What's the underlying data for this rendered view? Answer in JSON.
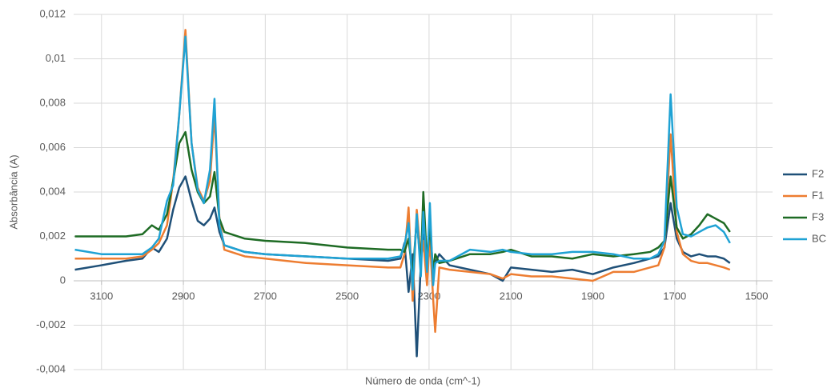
{
  "chart_data": {
    "type": "line",
    "x_label": "Número de onda (cm^-1)",
    "y_label": "Absorbância (A)",
    "x": [
      3165,
      3100,
      3040,
      3000,
      2977,
      2960,
      2940,
      2925,
      2910,
      2895,
      2880,
      2865,
      2850,
      2835,
      2824,
      2812,
      2800,
      2750,
      2700,
      2600,
      2500,
      2400,
      2370,
      2360,
      2350,
      2340,
      2330,
      2320,
      2314,
      2305,
      2298,
      2290,
      2285,
      2275,
      2250,
      2200,
      2150,
      2120,
      2100,
      2050,
      2000,
      1950,
      1900,
      1850,
      1800,
      1760,
      1740,
      1725,
      1710,
      1695,
      1680,
      1660,
      1640,
      1620,
      1600,
      1580,
      1565
    ],
    "series": [
      {
        "name": "F2",
        "color": "#1f5078",
        "values": [
          0.0005,
          0.0007,
          0.0009,
          0.001,
          0.0015,
          0.0013,
          0.0019,
          0.0032,
          0.0042,
          0.0047,
          0.0036,
          0.0027,
          0.0025,
          0.0028,
          0.0033,
          0.0022,
          0.0016,
          0.0013,
          0.0012,
          0.0011,
          0.001,
          0.0009,
          0.001,
          0.0017,
          -0.0005,
          0.0012,
          -0.0034,
          0.0008,
          0.0021,
          0.0005,
          0.0016,
          0.0002,
          0.0008,
          0.0012,
          0.0007,
          0.0005,
          0.0003,
          0.0,
          0.0006,
          0.0005,
          0.0004,
          0.0005,
          0.0003,
          0.0006,
          0.0008,
          0.001,
          0.0011,
          0.0015,
          0.0035,
          0.0019,
          0.0013,
          0.0011,
          0.0012,
          0.0011,
          0.0011,
          0.001,
          0.0008
        ]
      },
      {
        "name": "F1",
        "color": "#ed7d31",
        "values": [
          0.001,
          0.001,
          0.001,
          0.0011,
          0.0014,
          0.0017,
          0.0025,
          0.0045,
          0.0075,
          0.0113,
          0.0062,
          0.0042,
          0.0036,
          0.0045,
          0.0075,
          0.0028,
          0.0014,
          0.0011,
          0.001,
          0.0008,
          0.0007,
          0.0006,
          0.0006,
          0.0012,
          0.0033,
          -0.0009,
          0.0032,
          0.001,
          0.0018,
          -0.0002,
          0.0019,
          -0.0008,
          -0.0023,
          0.0006,
          0.0005,
          0.0004,
          0.0003,
          0.0001,
          0.0003,
          0.0002,
          0.0002,
          0.0001,
          0.0,
          0.0004,
          0.0004,
          0.0006,
          0.0007,
          0.0015,
          0.0066,
          0.0022,
          0.0012,
          0.0009,
          0.0008,
          0.0008,
          0.0007,
          0.0006,
          0.0005
        ]
      },
      {
        "name": "F3",
        "color": "#1e6b24",
        "values": [
          0.002,
          0.002,
          0.002,
          0.0021,
          0.0025,
          0.0023,
          0.003,
          0.0045,
          0.0062,
          0.0067,
          0.005,
          0.004,
          0.0035,
          0.0038,
          0.0049,
          0.0028,
          0.0022,
          0.0019,
          0.0018,
          0.0017,
          0.0015,
          0.0014,
          0.0014,
          0.0013,
          0.0019,
          0.0002,
          0.0028,
          0.0006,
          0.004,
          0.0008,
          0.0025,
          0.0004,
          0.0012,
          0.0008,
          0.0009,
          0.0012,
          0.0012,
          0.0013,
          0.0014,
          0.0011,
          0.0011,
          0.001,
          0.0012,
          0.0011,
          0.0012,
          0.0013,
          0.0015,
          0.0018,
          0.0047,
          0.0024,
          0.0019,
          0.0021,
          0.0025,
          0.003,
          0.0028,
          0.0026,
          0.0022
        ]
      },
      {
        "name": "BC",
        "color": "#1fa2d4",
        "values": [
          0.0014,
          0.0012,
          0.0012,
          0.0012,
          0.0015,
          0.0019,
          0.0036,
          0.0043,
          0.0075,
          0.011,
          0.0062,
          0.0041,
          0.0035,
          0.005,
          0.0082,
          0.0025,
          0.0016,
          0.0013,
          0.0012,
          0.0011,
          0.001,
          0.001,
          0.0011,
          0.0016,
          0.0026,
          -0.0004,
          0.003,
          0.0002,
          0.0031,
          0.0004,
          0.0035,
          -0.0002,
          0.0008,
          0.0009,
          0.0009,
          0.0014,
          0.0013,
          0.0014,
          0.0013,
          0.0012,
          0.0012,
          0.0013,
          0.0013,
          0.0012,
          0.001,
          0.001,
          0.0012,
          0.0018,
          0.0084,
          0.0033,
          0.0021,
          0.002,
          0.0022,
          0.0024,
          0.0025,
          0.0022,
          0.0017
        ]
      }
    ],
    "xlim": [
      3168,
      1461
    ],
    "xticks": [
      3100,
      2900,
      2700,
      2500,
      2300,
      2100,
      1900,
      1700,
      1500
    ],
    "ylim": [
      -0.004,
      0.012
    ],
    "yticks": [
      {
        "value": -0.004,
        "label": "-0,004"
      },
      {
        "value": -0.002,
        "label": "-0,002"
      },
      0,
      {
        "value": 0.002,
        "label": "0,002"
      },
      {
        "value": 0.004,
        "label": "0,004"
      },
      {
        "value": 0.006,
        "label": "0,006"
      },
      {
        "value": 0.008,
        "label": "0,008"
      },
      {
        "value": 0.01,
        "label": "0,01"
      },
      {
        "value": 0.012,
        "label": "0,012"
      }
    ],
    "grid": true,
    "legend": "right"
  }
}
